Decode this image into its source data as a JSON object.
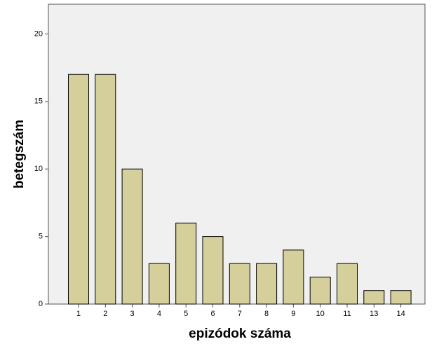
{
  "chart_data": {
    "type": "bar",
    "x_label": "epizódok száma",
    "y_label": "betegszám",
    "categories": [
      "1",
      "2",
      "3",
      "4",
      "5",
      "6",
      "7",
      "8",
      "9",
      "10",
      "11",
      "13",
      "14"
    ],
    "values": [
      17,
      17,
      10,
      3,
      6,
      5,
      3,
      3,
      4,
      2,
      3,
      1,
      1
    ],
    "color": "#d4cf9b",
    "ylim": [
      0,
      22.2
    ],
    "yticks": [
      0,
      5,
      10,
      15,
      20
    ],
    "grid": false
  }
}
